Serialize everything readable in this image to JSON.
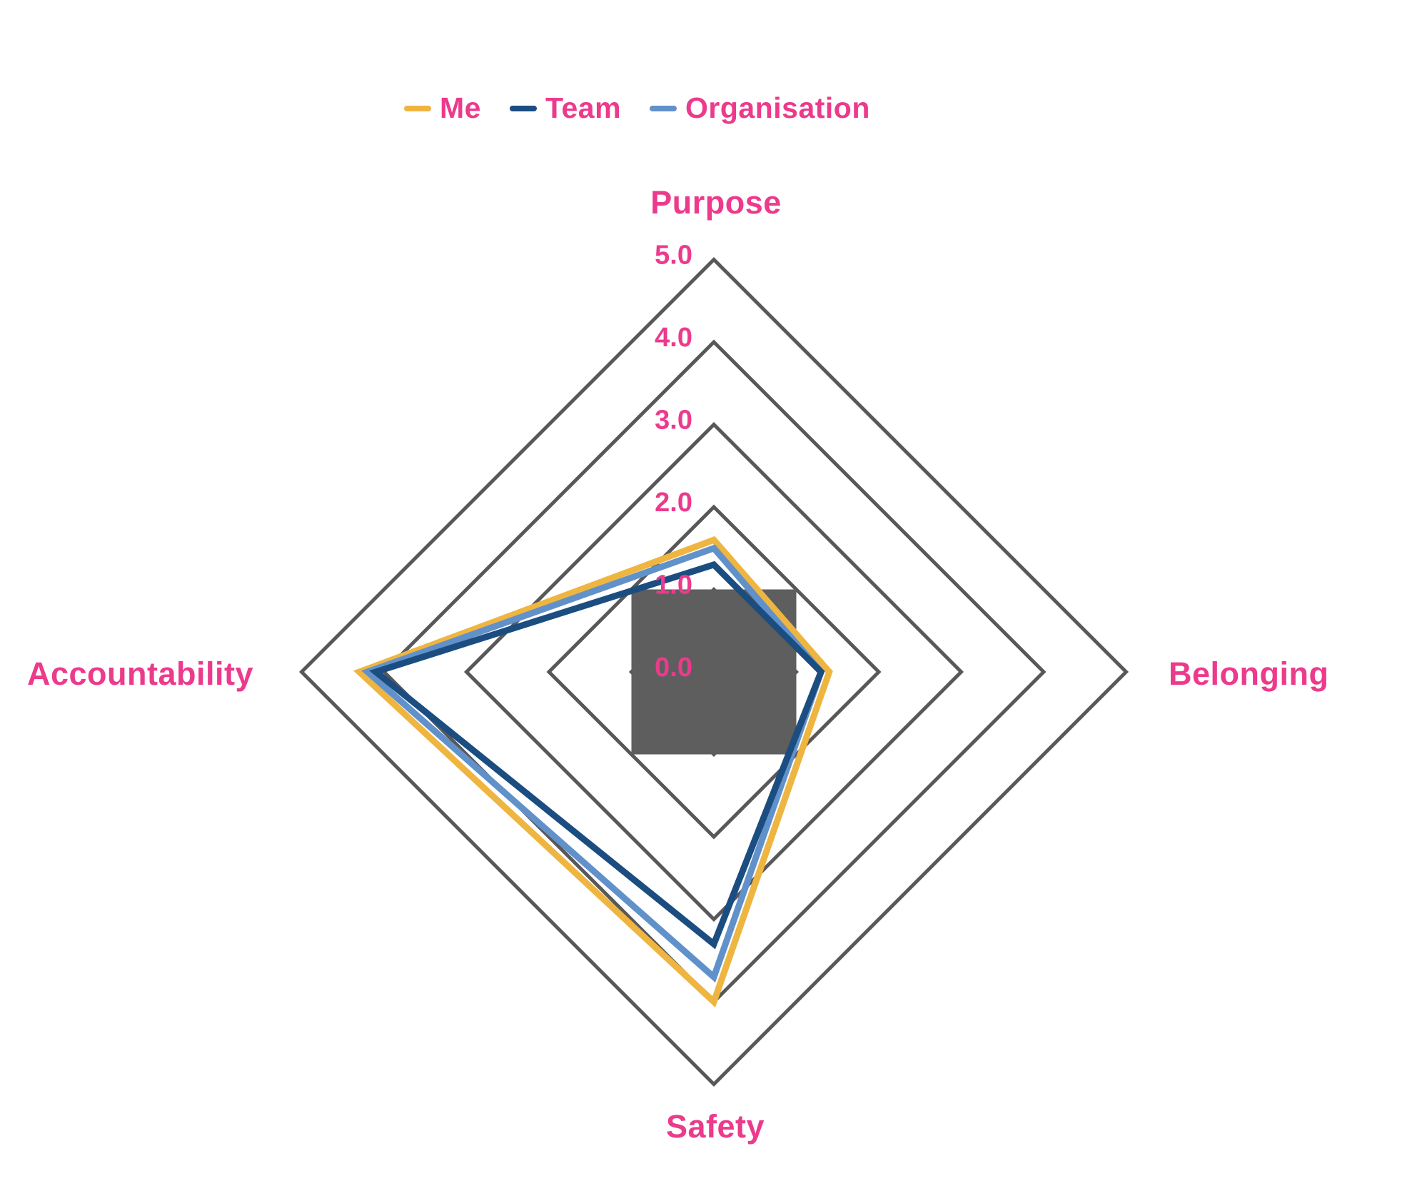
{
  "legend": {
    "items": [
      {
        "label": "Me",
        "color": "#EFB541"
      },
      {
        "label": "Team",
        "color": "#1B4D80"
      },
      {
        "label": "Organisation",
        "color": "#6191CA"
      }
    ]
  },
  "chart_data": {
    "type": "radar",
    "title": "",
    "categories": [
      "Purpose",
      "Belonging",
      "Safety",
      "Accountability"
    ],
    "series": [
      {
        "name": "Me",
        "color": "#EFB541",
        "values": [
          1.6,
          1.4,
          4.0,
          4.3
        ]
      },
      {
        "name": "Team",
        "color": "#1B4D80",
        "values": [
          1.3,
          1.3,
          3.3,
          4.1
        ]
      },
      {
        "name": "Organisation",
        "color": "#6191CA",
        "values": [
          1.5,
          1.3,
          3.7,
          4.2
        ]
      }
    ],
    "range": [
      0,
      5
    ],
    "ticks": [
      "5.0",
      "4.0",
      "3.0",
      "2.0",
      "1.0",
      "0.0"
    ],
    "grid": {
      "levels": 5,
      "shape": "diamond",
      "on": true,
      "color": "#58585A"
    },
    "center_overlay": {
      "shape": "square",
      "half_size_units": 1,
      "color": "#5E5E5E"
    },
    "label_color": "#EC3A8C",
    "legend_position": "top"
  }
}
